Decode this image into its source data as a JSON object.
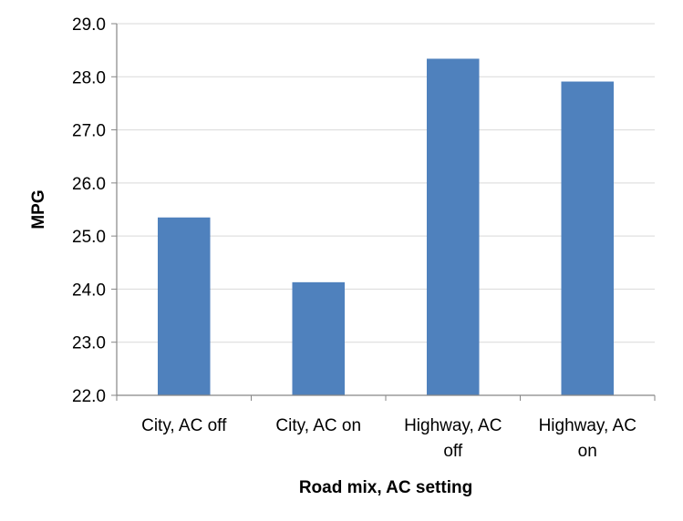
{
  "chart_data": {
    "type": "bar",
    "categories": [
      [
        "City, AC off"
      ],
      [
        "City, AC on"
      ],
      [
        "Highway, AC",
        "off"
      ],
      [
        "Highway, AC",
        "on"
      ]
    ],
    "values": [
      25.35,
      24.13,
      28.34,
      27.91
    ],
    "xlabel": "Road mix, AC setting",
    "ylabel": "MPG",
    "ylim": [
      22.0,
      29.0
    ],
    "yticks": [
      "22.0",
      "23.0",
      "24.0",
      "25.0",
      "26.0",
      "27.0",
      "28.0",
      "29.0"
    ],
    "grid": true,
    "legend": "none",
    "colors": {
      "bar": "#4f81bd",
      "grid": "#d9d9d9",
      "axis": "#868686"
    }
  }
}
